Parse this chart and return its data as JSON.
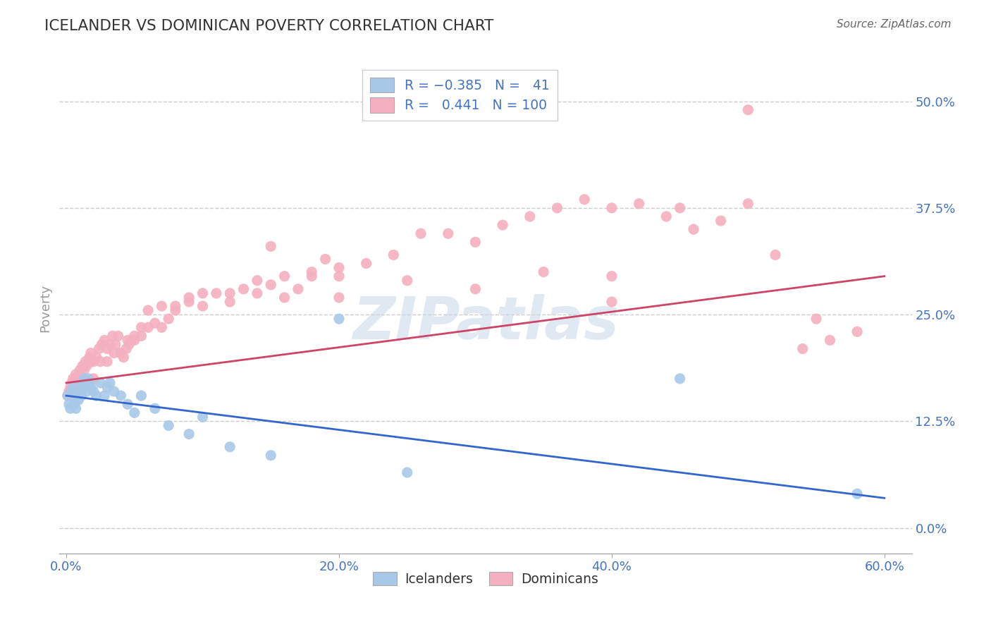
{
  "title": "ICELANDER VS DOMINICAN POVERTY CORRELATION CHART",
  "source": "Source: ZipAtlas.com",
  "ylabel": "Poverty",
  "ytick_labels": [
    "0.0%",
    "12.5%",
    "25.0%",
    "37.5%",
    "50.0%"
  ],
  "ytick_values": [
    0.0,
    0.125,
    0.25,
    0.375,
    0.5
  ],
  "xtick_values": [
    0.0,
    0.2,
    0.4,
    0.6
  ],
  "xtick_labels": [
    "0.0%",
    "20.0%",
    "40.0%",
    "60.0%"
  ],
  "xlim": [
    -0.005,
    0.62
  ],
  "ylim": [
    -0.03,
    0.545
  ],
  "watermark": "ZIPatlas",
  "icelander_color": "#a8c8e8",
  "dominican_color": "#f4b0c0",
  "icelander_line_color": "#3366cc",
  "dominican_line_color": "#cc4466",
  "title_color": "#333333",
  "axis_label_color": "#4472c4",
  "tick_color": "#4472c4",
  "grid_color": "#cccccc",
  "background_color": "#ffffff",
  "icelander_x": [
    0.001,
    0.002,
    0.003,
    0.004,
    0.005,
    0.006,
    0.007,
    0.007,
    0.008,
    0.009,
    0.01,
    0.011,
    0.012,
    0.013,
    0.013,
    0.014,
    0.015,
    0.016,
    0.017,
    0.018,
    0.02,
    0.022,
    0.025,
    0.028,
    0.03,
    0.032,
    0.035,
    0.04,
    0.045,
    0.05,
    0.055,
    0.065,
    0.075,
    0.09,
    0.1,
    0.12,
    0.15,
    0.2,
    0.25,
    0.45,
    0.58
  ],
  "icelander_y": [
    0.155,
    0.145,
    0.14,
    0.16,
    0.165,
    0.145,
    0.14,
    0.15,
    0.155,
    0.15,
    0.16,
    0.155,
    0.17,
    0.165,
    0.175,
    0.165,
    0.16,
    0.175,
    0.17,
    0.165,
    0.16,
    0.155,
    0.17,
    0.155,
    0.165,
    0.17,
    0.16,
    0.155,
    0.145,
    0.135,
    0.155,
    0.14,
    0.12,
    0.11,
    0.13,
    0.095,
    0.085,
    0.245,
    0.065,
    0.175,
    0.04
  ],
  "dominican_x": [
    0.001,
    0.002,
    0.003,
    0.004,
    0.005,
    0.006,
    0.007,
    0.008,
    0.009,
    0.01,
    0.011,
    0.012,
    0.013,
    0.014,
    0.015,
    0.016,
    0.017,
    0.018,
    0.019,
    0.02,
    0.022,
    0.024,
    0.026,
    0.028,
    0.03,
    0.032,
    0.034,
    0.036,
    0.038,
    0.04,
    0.042,
    0.044,
    0.046,
    0.048,
    0.05,
    0.055,
    0.06,
    0.065,
    0.07,
    0.075,
    0.08,
    0.09,
    0.1,
    0.11,
    0.12,
    0.13,
    0.14,
    0.15,
    0.16,
    0.17,
    0.18,
    0.19,
    0.2,
    0.22,
    0.24,
    0.26,
    0.28,
    0.3,
    0.32,
    0.34,
    0.36,
    0.38,
    0.4,
    0.42,
    0.44,
    0.46,
    0.48,
    0.5,
    0.52,
    0.54,
    0.56,
    0.58,
    0.02,
    0.025,
    0.03,
    0.035,
    0.04,
    0.045,
    0.05,
    0.055,
    0.06,
    0.07,
    0.08,
    0.09,
    0.1,
    0.12,
    0.14,
    0.16,
    0.18,
    0.2,
    0.25,
    0.3,
    0.35,
    0.4,
    0.45,
    0.5,
    0.55,
    0.15,
    0.2,
    0.4
  ],
  "dominican_y": [
    0.155,
    0.16,
    0.165,
    0.17,
    0.175,
    0.165,
    0.18,
    0.175,
    0.18,
    0.185,
    0.175,
    0.19,
    0.185,
    0.195,
    0.19,
    0.195,
    0.2,
    0.205,
    0.195,
    0.195,
    0.2,
    0.21,
    0.215,
    0.22,
    0.21,
    0.215,
    0.225,
    0.215,
    0.225,
    0.205,
    0.2,
    0.21,
    0.215,
    0.22,
    0.22,
    0.225,
    0.235,
    0.24,
    0.235,
    0.245,
    0.255,
    0.265,
    0.26,
    0.275,
    0.265,
    0.28,
    0.275,
    0.285,
    0.27,
    0.28,
    0.295,
    0.315,
    0.295,
    0.31,
    0.32,
    0.345,
    0.345,
    0.335,
    0.355,
    0.365,
    0.375,
    0.385,
    0.375,
    0.38,
    0.365,
    0.35,
    0.36,
    0.38,
    0.32,
    0.21,
    0.22,
    0.23,
    0.175,
    0.195,
    0.195,
    0.205,
    0.205,
    0.22,
    0.225,
    0.235,
    0.255,
    0.26,
    0.26,
    0.27,
    0.275,
    0.275,
    0.29,
    0.295,
    0.3,
    0.305,
    0.29,
    0.28,
    0.3,
    0.295,
    0.375,
    0.49,
    0.245,
    0.33,
    0.27,
    0.265
  ],
  "ice_line_x0": 0.0,
  "ice_line_x1": 0.6,
  "ice_line_y0": 0.155,
  "ice_line_y1": 0.035,
  "dom_line_x0": 0.0,
  "dom_line_x1": 0.6,
  "dom_line_y0": 0.17,
  "dom_line_y1": 0.295
}
